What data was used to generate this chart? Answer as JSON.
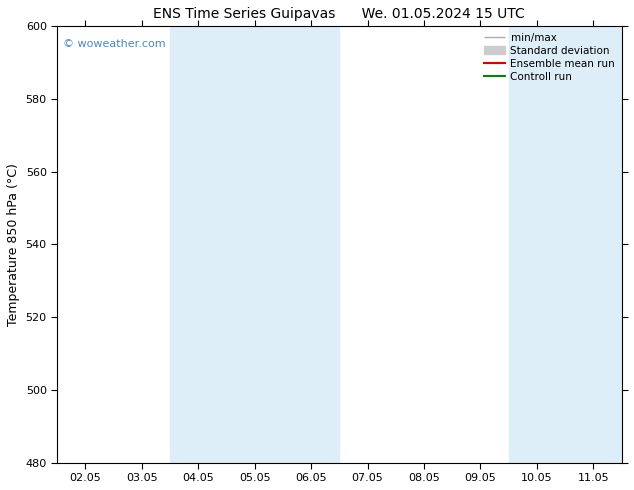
{
  "title_left": "ENS Time Series Guipavas",
  "title_right": "We. 01.05.2024 15 UTC",
  "ylabel": "Temperature 850 hPa (°C)",
  "ylim": [
    480,
    600
  ],
  "yticks": [
    480,
    500,
    520,
    540,
    560,
    580,
    600
  ],
  "x_labels": [
    "02.05",
    "03.05",
    "04.05",
    "05.05",
    "06.05",
    "07.05",
    "08.05",
    "09.05",
    "10.05",
    "11.05"
  ],
  "shaded_bands": [
    {
      "xstart": 2,
      "xend": 4,
      "color": "#ddeef8"
    },
    {
      "xstart": 8,
      "xend": 10,
      "color": "#ddeef8"
    }
  ],
  "watermark": "© woweather.com",
  "watermark_color": "#4488cc",
  "legend_entries": [
    {
      "label": "min/max",
      "color": "#aaaaaa",
      "lw": 1.0,
      "style": "minmax"
    },
    {
      "label": "Standard deviation",
      "color": "#cccccc",
      "lw": 8,
      "style": "thick"
    },
    {
      "label": "Ensemble mean run",
      "color": "#dd0000",
      "lw": 1.5,
      "style": "line"
    },
    {
      "label": "Controll run",
      "color": "#008800",
      "lw": 1.5,
      "style": "line"
    }
  ],
  "background_color": "#ffffff",
  "plot_bg_color": "#ffffff",
  "spine_color": "#000000",
  "title_fontsize": 10,
  "tick_fontsize": 8,
  "ylabel_fontsize": 9,
  "figwidth": 6.34,
  "figheight": 4.9,
  "dpi": 100
}
